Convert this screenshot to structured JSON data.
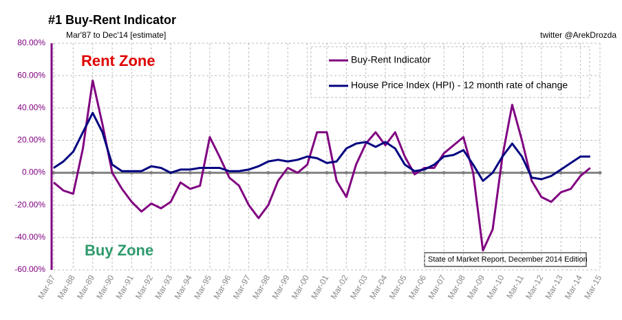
{
  "chart_data": {
    "type": "line",
    "title": "#1 Buy-Rent Indicator",
    "subtitle": "Mar'87 to Dec'14 [estimate]",
    "source": "twitter @ArekDrozda",
    "annotations": [
      "Rent Zone",
      "Buy Zone",
      "State of Market Report, December 2014 Edition"
    ],
    "categories": [
      "Mar-87",
      null,
      "Mar-88",
      null,
      "Mar-89",
      null,
      "Mar-90",
      null,
      "Mar-91",
      null,
      "Mar-92",
      null,
      "Mar-93",
      null,
      "Mar-94",
      null,
      "Mar-95",
      null,
      "Mar-96",
      null,
      "Mar-97",
      null,
      "Mar-98",
      null,
      "Mar-99",
      null,
      "Mar-00",
      null,
      "Mar-01",
      null,
      "Mar-02",
      null,
      "Mar-03",
      null,
      "Mar-04",
      null,
      "Mar-05",
      null,
      "Mar-06",
      null,
      "Mar-07",
      null,
      "Mar-08",
      null,
      "Mar-09",
      null,
      "Mar-10",
      null,
      "Mar-11",
      null,
      "Mar-12",
      null,
      "Mar-13",
      null,
      "Mar-14",
      null,
      "Mar-15"
    ],
    "series": [
      {
        "name": "Buy-Rent Indicator",
        "color": "#800080",
        "values": [
          -6,
          -11,
          -13,
          15,
          57,
          30,
          0,
          -10,
          -18,
          -24,
          -19,
          -22,
          -18,
          -6,
          -10,
          -8,
          22,
          10,
          -3,
          -8,
          -20,
          -28,
          -20,
          -5,
          3,
          0,
          5,
          25,
          25,
          -5,
          -15,
          5,
          18,
          25,
          17,
          25,
          10,
          -1,
          3,
          3,
          12,
          17,
          22,
          0,
          -48,
          -35,
          10,
          42,
          20,
          -5,
          -15,
          -18,
          -12,
          -10,
          -2,
          3,
          null
        ]
      },
      {
        "name": "House Price Index (HPI) - 12 month rate of change",
        "color": "#000080",
        "values": [
          3,
          7,
          13,
          25,
          37,
          25,
          5,
          1,
          1,
          1,
          4,
          3,
          0,
          2,
          2,
          3,
          3,
          3,
          1,
          1,
          2,
          4,
          7,
          8,
          7,
          8,
          10,
          9,
          6,
          7,
          15,
          18,
          19,
          16,
          19,
          15,
          5,
          1,
          2,
          5,
          10,
          11,
          14,
          5,
          -5,
          0,
          10,
          18,
          10,
          -3,
          -4,
          -2,
          2,
          6,
          10,
          10,
          null
        ]
      }
    ],
    "ylim": [
      -60,
      80
    ],
    "yticks": [
      {
        "value": -60,
        "label": "-60.00%"
      },
      {
        "value": -40,
        "label": "-40.00%"
      },
      {
        "value": -20,
        "label": "-20.00%"
      },
      {
        "value": 0,
        "label": "0.00%"
      },
      {
        "value": 20,
        "label": "20.00%"
      },
      {
        "value": 40,
        "label": "40.00%"
      },
      {
        "value": 60,
        "label": "60.00%"
      },
      {
        "value": 80,
        "label": "80.00%"
      }
    ],
    "grid": true,
    "legend": "upper right"
  }
}
